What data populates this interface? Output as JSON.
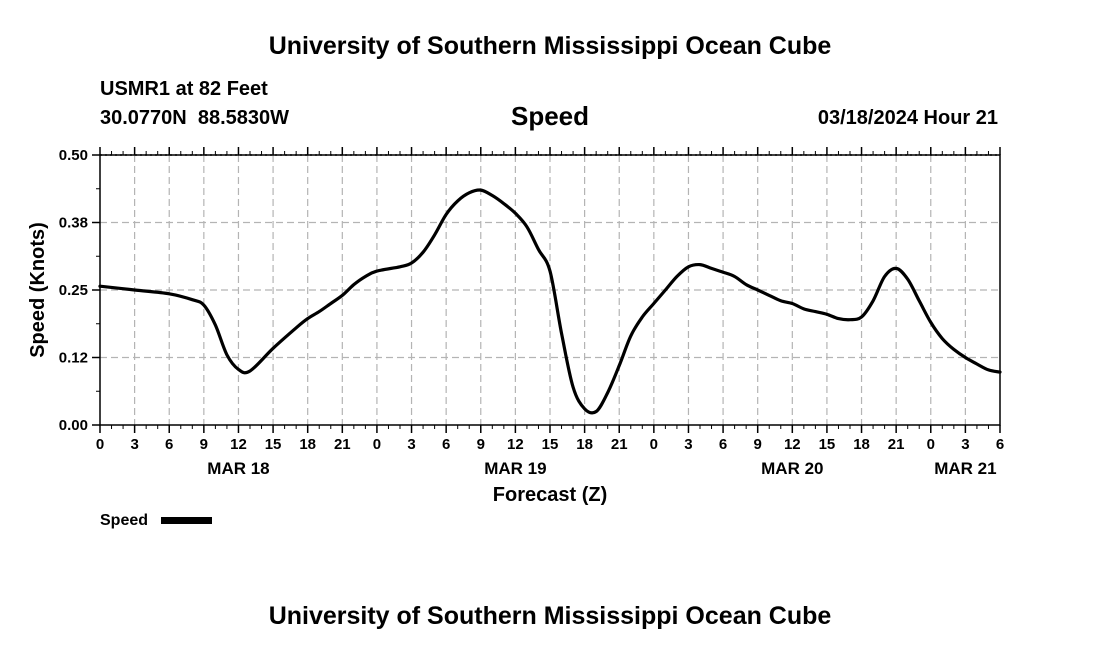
{
  "chart_data": {
    "type": "line",
    "title": "University of Southern Mississippi Ocean Cube",
    "footer_title": "University of Southern Mississippi Ocean Cube",
    "station": "USMR1 at 82 Feet",
    "location": "30.0770N  88.5830W",
    "subtitle": "Speed",
    "datetime": "03/18/2024 Hour 21",
    "xlabel": "Forecast (Z)",
    "ylabel": "Speed (Knots)",
    "ylim": [
      0,
      0.5
    ],
    "xlim": [
      0,
      78
    ],
    "yticks": [
      0,
      0.125,
      0.25,
      0.375,
      0.5
    ],
    "ytick_labels": [
      "0.00",
      "0.12",
      "0.25",
      "0.38",
      "0.50"
    ],
    "xticks": [
      0,
      3,
      6,
      9,
      12,
      15,
      18,
      21,
      24,
      27,
      30,
      33,
      36,
      39,
      42,
      45,
      48,
      51,
      54,
      57,
      60,
      63,
      66,
      69,
      72,
      75,
      78
    ],
    "xtick_labels": [
      "0",
      "3",
      "6",
      "9",
      "12",
      "15",
      "18",
      "21",
      "0",
      "3",
      "6",
      "9",
      "12",
      "15",
      "18",
      "21",
      "0",
      "3",
      "6",
      "9",
      "12",
      "15",
      "18",
      "21",
      "0",
      "3",
      "6"
    ],
    "day_labels": [
      {
        "x": 12,
        "label": "MAR 18"
      },
      {
        "x": 36,
        "label": "MAR 19"
      },
      {
        "x": 60,
        "label": "MAR 20"
      },
      {
        "x": 75,
        "label": "MAR 21"
      }
    ],
    "grid": true,
    "legend": {
      "position": "bottom-left",
      "label": "Speed"
    },
    "series": [
      {
        "name": "Speed",
        "color": "#000000",
        "x": [
          0,
          3,
          6,
          8,
          9,
          10,
          11,
          12,
          13,
          15,
          17,
          18,
          19,
          20,
          21,
          22,
          23,
          24,
          26,
          27,
          28,
          29,
          30,
          31,
          32,
          33,
          34,
          35,
          36,
          37,
          38,
          39,
          40,
          41,
          42,
          43,
          44,
          45,
          46,
          47,
          48,
          49,
          50,
          51,
          52,
          53,
          54,
          55,
          56,
          57,
          58,
          59,
          60,
          61,
          62,
          63,
          64,
          65,
          66,
          67,
          68,
          69,
          70,
          71,
          72,
          73,
          74,
          75,
          76,
          77,
          78
        ],
        "values": [
          0.257,
          0.25,
          0.243,
          0.232,
          0.222,
          0.185,
          0.13,
          0.103,
          0.1,
          0.142,
          0.18,
          0.197,
          0.21,
          0.225,
          0.24,
          0.26,
          0.275,
          0.285,
          0.293,
          0.3,
          0.32,
          0.352,
          0.39,
          0.415,
          0.43,
          0.435,
          0.425,
          0.41,
          0.392,
          0.367,
          0.325,
          0.285,
          0.17,
          0.07,
          0.03,
          0.025,
          0.06,
          0.11,
          0.165,
          0.2,
          0.225,
          0.25,
          0.275,
          0.293,
          0.297,
          0.29,
          0.283,
          0.275,
          0.26,
          0.25,
          0.24,
          0.23,
          0.225,
          0.215,
          0.21,
          0.205,
          0.197,
          0.195,
          0.2,
          0.23,
          0.275,
          0.29,
          0.27,
          0.23,
          0.19,
          0.16,
          0.14,
          0.125,
          0.113,
          0.102,
          0.098
        ]
      }
    ]
  }
}
